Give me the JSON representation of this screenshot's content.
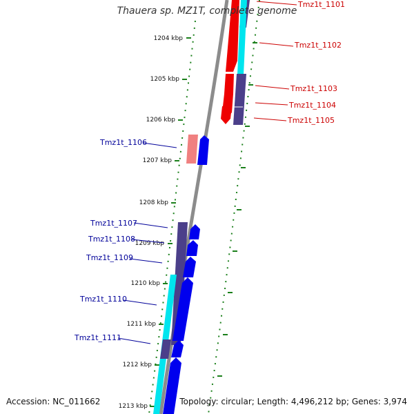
{
  "header": {
    "title": "Thauera sp. MZ1T, complete genome"
  },
  "footer": {
    "accession": "Accession: NC_011662",
    "summary": "Topology: circular; Length: 4,496,212 bp; Genes: 3,974"
  },
  "ruler": {
    "ticks": [
      "1204 kbp",
      "1205 kbp",
      "1206 kbp",
      "1207 kbp",
      "1208 kbp",
      "1209 kbp",
      "1210 kbp",
      "1211 kbp",
      "1212 kbp",
      "1213 kbp"
    ]
  },
  "genes": {
    "forward_strand": [
      "Tmz1t_1101",
      "Tmz1t_1102",
      "Tmz1t_1103",
      "Tmz1t_1104",
      "Tmz1t_1105"
    ],
    "reverse_strand": [
      "Tmz1t_1106",
      "Tmz1t_1107",
      "Tmz1t_1108",
      "Tmz1t_1109",
      "Tmz1t_1110",
      "Tmz1t_1111"
    ]
  },
  "colors": {
    "backbone": "#8c8c8c",
    "dotted_ring": "#1a7f1a",
    "forward_cds": "#ee0000",
    "forward_pseudo": "#f08080",
    "reverse_cds": "#0000ee",
    "rna_feature": "#00e5ee",
    "gene_feature": "#4b3f8a"
  }
}
